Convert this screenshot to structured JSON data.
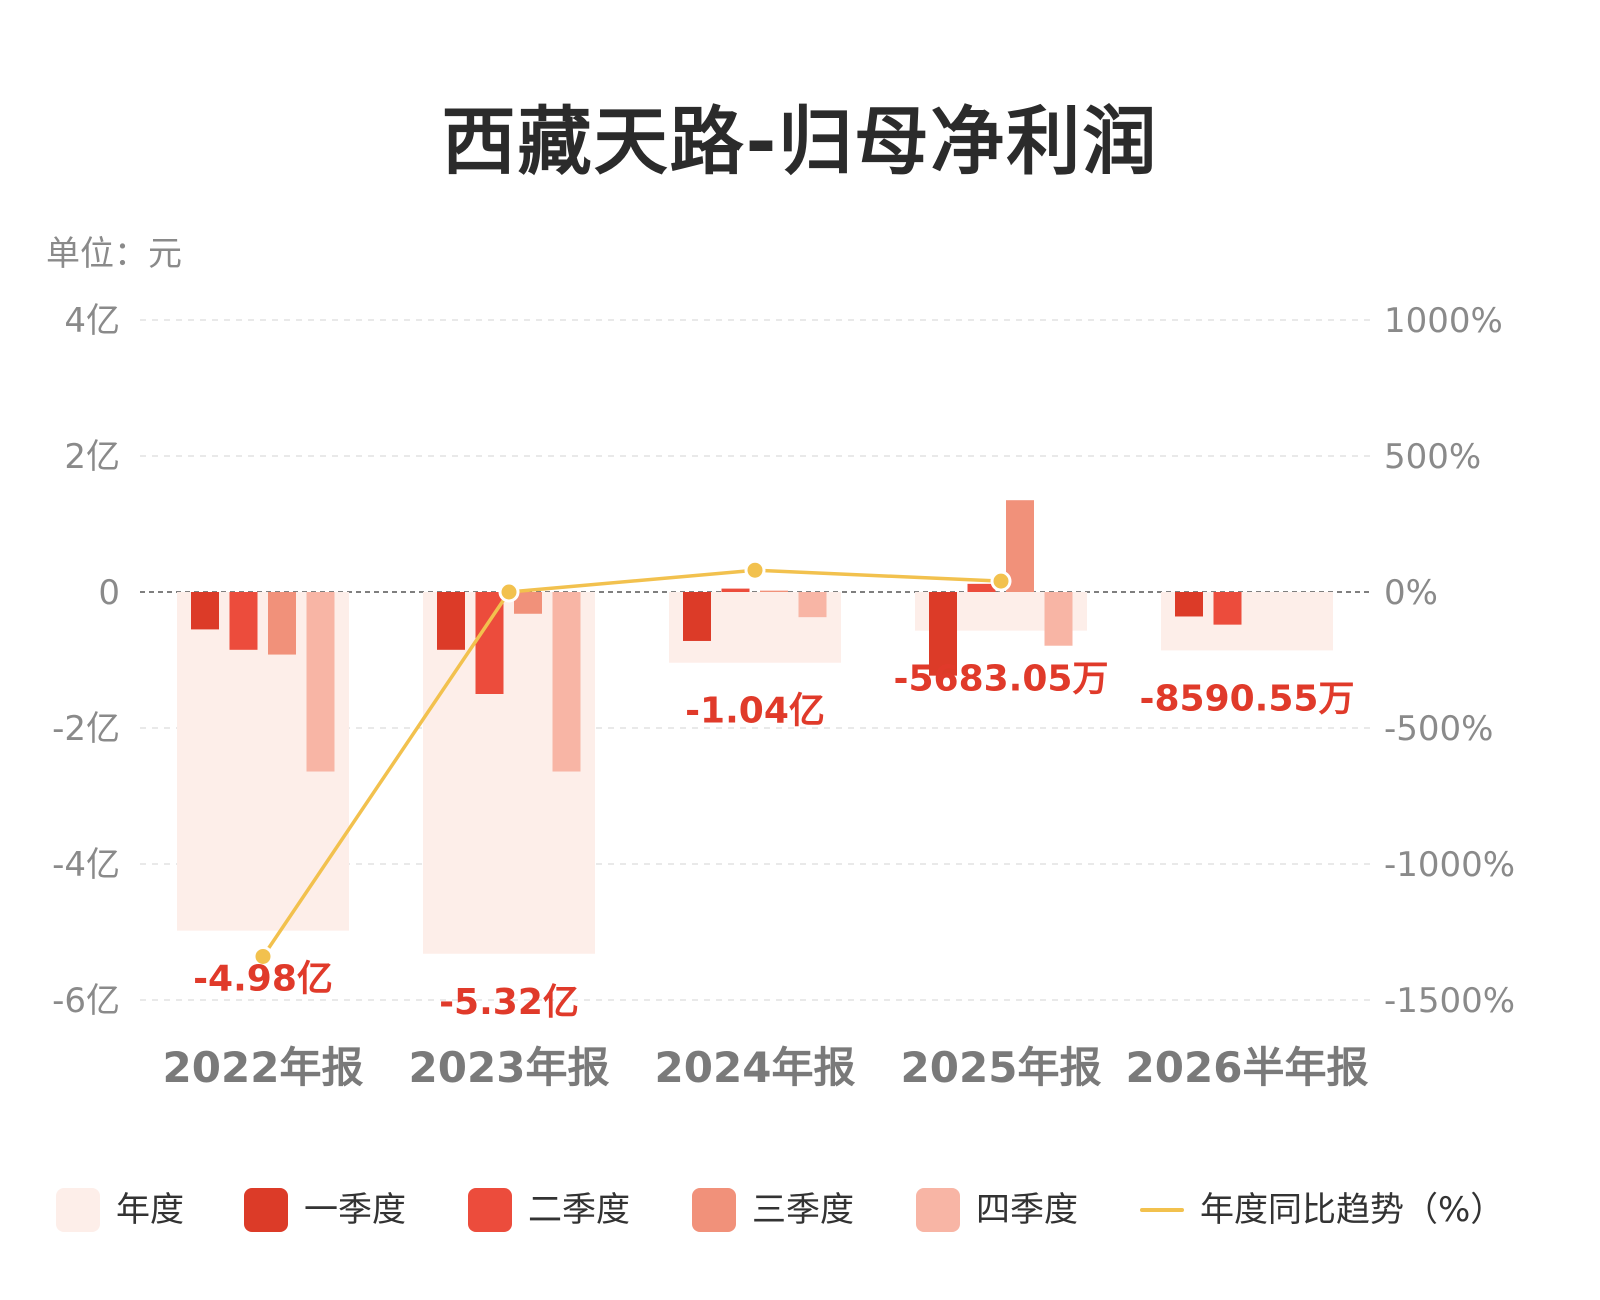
{
  "title": "西藏天路-归母净利润",
  "unit_label": "单位：元",
  "colors": {
    "annual": "#fdeee9",
    "q1": "#dc3b28",
    "q2": "#ec4c3c",
    "q3": "#f1917a",
    "q4": "#f8b5a5",
    "trend": "#f2c14e",
    "value_label": "#e03a2a",
    "axis_text": "#8a8a8a",
    "category_text": "#7a7a7a"
  },
  "legend": [
    {
      "label": "年度",
      "color_key": "annual",
      "kind": "box"
    },
    {
      "label": "一季度",
      "color_key": "q1",
      "kind": "box"
    },
    {
      "label": "二季度",
      "color_key": "q2",
      "kind": "box"
    },
    {
      "label": "三季度",
      "color_key": "q3",
      "kind": "box"
    },
    {
      "label": "四季度",
      "color_key": "q4",
      "kind": "box"
    },
    {
      "label": "年度同比趋势（%）",
      "color_key": "trend",
      "kind": "line"
    }
  ],
  "chart_data": {
    "type": "bar",
    "title": "西藏天路-归母净利润",
    "categories": [
      "2022年报",
      "2023年报",
      "2024年报",
      "2025年报",
      "2026半年报"
    ],
    "annual": {
      "name": "年度",
      "values": [
        -4.98,
        -5.32,
        -1.04,
        -0.5683,
        -0.8591
      ],
      "labels": [
        "-4.98亿",
        "-5.32亿",
        "-1.04亿",
        "-5683.05万",
        "-8590.55万"
      ]
    },
    "series": [
      {
        "name": "一季度",
        "values": [
          -0.55,
          -0.85,
          -0.72,
          -1.23,
          -0.36
        ]
      },
      {
        "name": "二季度",
        "values": [
          -0.85,
          -1.5,
          0.05,
          0.12,
          -0.48
        ]
      },
      {
        "name": "三季度",
        "values": [
          -0.92,
          -0.32,
          0.02,
          1.35,
          null
        ]
      },
      {
        "name": "四季度",
        "values": [
          -2.64,
          -2.64,
          -0.37,
          -0.79,
          null
        ]
      }
    ],
    "trend": {
      "name": "年度同比趋势（%）",
      "values": [
        -1340,
        0,
        80,
        40
      ],
      "point_count": 4
    },
    "y_left": {
      "min": -6,
      "max": 4,
      "ticks": [
        4,
        2,
        0,
        -2,
        -4,
        -6
      ],
      "tick_labels": [
        "4亿",
        "2亿",
        "0",
        "-2亿",
        "-4亿",
        "-6亿"
      ],
      "unit": "亿"
    },
    "y_right": {
      "min": -1500,
      "max": 1000,
      "ticks": [
        1000,
        500,
        0,
        -500,
        -1000,
        -1500
      ],
      "tick_labels": [
        "1000%",
        "500%",
        "0%",
        "-500%",
        "-1000%",
        "-1500%"
      ]
    },
    "grid": true,
    "legend_position": "bottom"
  }
}
